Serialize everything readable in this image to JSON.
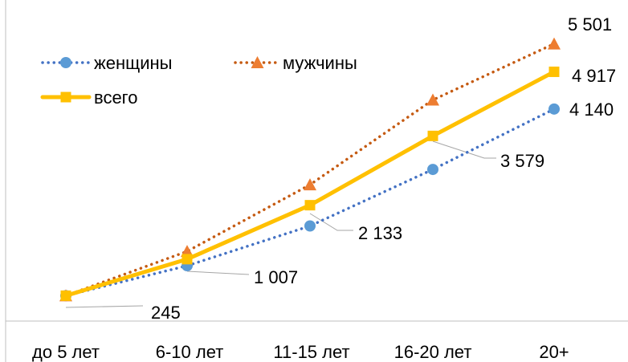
{
  "chart_data": {
    "type": "line",
    "categories": [
      "до 5 лет",
      "6-10 лет",
      "11-15 лет",
      "16-20 лет",
      "20+"
    ],
    "series": [
      {
        "name": "женщины",
        "values": [
          245,
          870,
          1700,
          2880,
          4140
        ],
        "color": "#5b9bd5",
        "marker": "circle",
        "line_color": "#4472c4",
        "dash": "dot"
      },
      {
        "name": "мужчины",
        "values": [
          245,
          1170,
          2560,
          4330,
          5501
        ],
        "color": "#ed7d31",
        "marker": "triangle",
        "line_color": "#c55a11",
        "dash": "dot"
      },
      {
        "name": "всего",
        "values": [
          245,
          1007,
          2133,
          3579,
          4917
        ],
        "color": "#ffc000",
        "marker": "square",
        "line_color": "#ffc000",
        "dash": "solid"
      }
    ],
    "data_labels": [
      {
        "text": "245"
      },
      {
        "text": "1 007"
      },
      {
        "text": "2 133"
      },
      {
        "text": "3 579"
      },
      {
        "text": "4 917"
      },
      {
        "text": "5 501"
      },
      {
        "text": "4 140"
      }
    ],
    "ylim": [
      0,
      6050
    ],
    "grid": false,
    "legend_position": "top-left"
  }
}
